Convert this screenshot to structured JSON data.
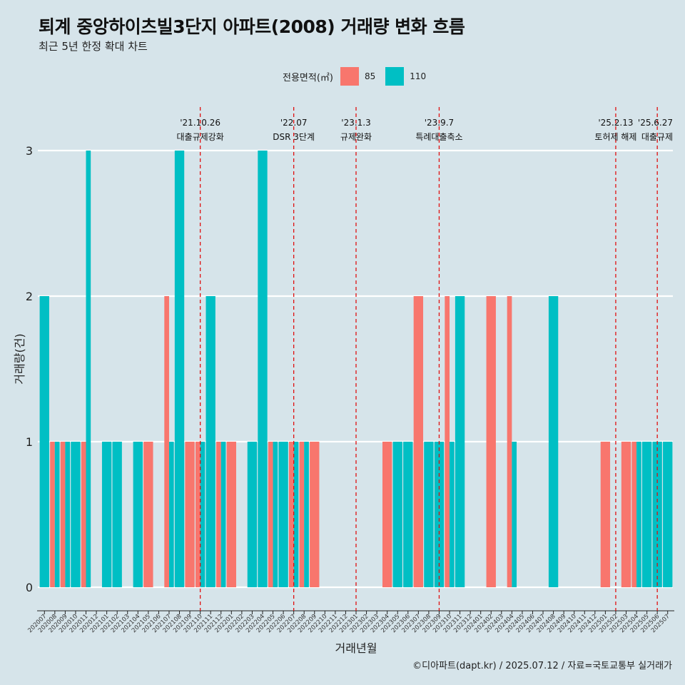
{
  "header": {
    "title": "퇴계 중앙하이츠빌3단지 아파트(2008) 거래량 변화 흐름",
    "subtitle": "최근 5년 한정 확대 차트"
  },
  "legend": {
    "title": "전용면적(㎡)",
    "items": [
      {
        "label": "85",
        "color": "#F8766D"
      },
      {
        "label": "110",
        "color": "#00BFC4"
      }
    ]
  },
  "caption": "©디아파트(dapt.kr) / 2025.07.12 / 자료=국토교통부 실거래가",
  "chart_data": {
    "type": "bar",
    "title": "퇴계 중앙하이츠빌3단지 아파트(2008) 거래량 변화 흐름",
    "xlabel": "거래년월",
    "ylabel": "거래량(건)",
    "ylim": [
      0,
      3
    ],
    "yticks": [
      0,
      1,
      2,
      3
    ],
    "categories": [
      "202007",
      "202008",
      "202009",
      "202010",
      "202011",
      "202012",
      "202101",
      "202102",
      "202103",
      "202104",
      "202105",
      "202106",
      "202107",
      "202108",
      "202109",
      "202110",
      "202111",
      "202112",
      "202201",
      "202202",
      "202203",
      "202204",
      "202205",
      "202206",
      "202207",
      "202208",
      "202209",
      "202210",
      "202211",
      "202212",
      "202301",
      "202302",
      "202303",
      "202304",
      "202305",
      "202306",
      "202307",
      "202308",
      "202309",
      "202310",
      "202311",
      "202312",
      "202401",
      "202402",
      "202403",
      "202404",
      "202405",
      "202406",
      "202407",
      "202408",
      "202409",
      "202410",
      "202411",
      "202412",
      "202501",
      "202502",
      "202503",
      "202504",
      "202505",
      "202506",
      "202507"
    ],
    "series": [
      {
        "name": "85",
        "color": "#F8766D",
        "values": [
          0,
          1,
          1,
          0,
          1,
          0,
          0,
          0,
          0,
          0,
          1,
          0,
          2,
          0,
          1,
          1,
          0,
          1,
          1,
          0,
          0,
          0,
          1,
          0,
          1,
          1,
          1,
          0,
          0,
          0,
          0,
          0,
          0,
          1,
          0,
          0,
          2,
          0,
          0,
          2,
          0,
          0,
          0,
          2,
          0,
          2,
          0,
          0,
          0,
          0,
          0,
          0,
          0,
          0,
          1,
          0,
          1,
          1,
          0,
          0,
          0
        ]
      },
      {
        "name": "110",
        "color": "#00BFC4",
        "values": [
          2,
          1,
          1,
          1,
          3,
          0,
          1,
          1,
          0,
          1,
          0,
          0,
          1,
          3,
          0,
          1,
          2,
          1,
          0,
          0,
          1,
          3,
          1,
          1,
          1,
          1,
          0,
          0,
          0,
          0,
          0,
          0,
          0,
          0,
          1,
          1,
          0,
          1,
          1,
          1,
          2,
          0,
          0,
          0,
          0,
          1,
          0,
          0,
          0,
          2,
          0,
          0,
          0,
          0,
          0,
          0,
          0,
          1,
          1,
          1,
          1
        ]
      }
    ],
    "annotations": [
      {
        "month": "202110",
        "date": "'21.10.26",
        "label": "대출규제강화"
      },
      {
        "month": "202207",
        "date": "'22.07",
        "label": "DSR 3단계"
      },
      {
        "month": "202301",
        "date": "'23.1.3",
        "label": "규제완화"
      },
      {
        "month": "202309",
        "date": "'23.9.7",
        "label": "특례대출축소"
      },
      {
        "month": "202502",
        "date": "'25.2.13",
        "label": "토허제 해제"
      },
      {
        "month": "202506",
        "date": "'25.6.27",
        "label": "대출규제"
      }
    ]
  }
}
